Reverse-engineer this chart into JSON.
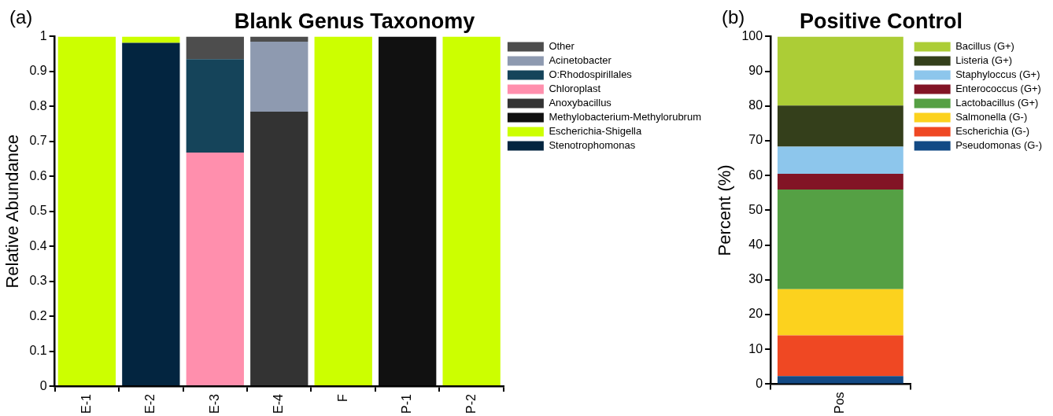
{
  "chart_data": [
    {
      "type": "bar",
      "title": "Blank Genus Taxonomy",
      "ylabel": "Relative Abundance",
      "annotations": [
        "(a)"
      ],
      "stacked": true,
      "grid": false,
      "legend": "top right",
      "categories": [
        "E-1",
        "E-2",
        "E-3",
        "E-4",
        "F",
        "P-1",
        "P-2"
      ],
      "ylim": [
        0,
        1
      ],
      "yticks": [
        0,
        0.1,
        0.2,
        0.3,
        0.4,
        0.5,
        0.6,
        0.7,
        0.8,
        0.9,
        1
      ],
      "series": [
        {
          "name": "Stenotrophomonas",
          "color": "#032540",
          "values": [
            0,
            0.982,
            0,
            0,
            0,
            0,
            0
          ]
        },
        {
          "name": "Escherichia-Shigella",
          "color": "#ccff00",
          "values": [
            1,
            0.018,
            0,
            0,
            1,
            0,
            1
          ]
        },
        {
          "name": "Methylobacterium-Methylorubrum",
          "color": "#111111",
          "values": [
            0,
            0,
            0,
            0,
            0,
            1,
            0
          ]
        },
        {
          "name": "Anoxybacillus",
          "color": "#333333",
          "values": [
            0,
            0,
            0,
            0.785,
            0,
            0,
            0
          ]
        },
        {
          "name": "Chloroplast",
          "color": "#ff8fad",
          "values": [
            0,
            0,
            0.668,
            0,
            0,
            0,
            0
          ]
        },
        {
          "name": "O:Rhodospirillales",
          "color": "#15445a",
          "values": [
            0,
            0,
            0.267,
            0,
            0,
            0,
            0
          ]
        },
        {
          "name": "Acinetobacter",
          "color": "#8e9ab0",
          "values": [
            0,
            0,
            0,
            0.2,
            0,
            0,
            0
          ]
        },
        {
          "name": "Other",
          "color": "#4d4d4d",
          "values": [
            0,
            0,
            0.065,
            0.015,
            0,
            0,
            0
          ]
        }
      ]
    },
    {
      "type": "bar",
      "title": "Positive Control",
      "ylabel": "Percent (%)",
      "annotations": [
        "(b)"
      ],
      "stacked": true,
      "grid": false,
      "legend": "top right",
      "categories": [
        "Pos"
      ],
      "ylim": [
        0,
        100
      ],
      "yticks": [
        0,
        10,
        20,
        30,
        40,
        50,
        60,
        70,
        80,
        90,
        100
      ],
      "series": [
        {
          "name": "Pseudomonas (G-)",
          "color": "#134a85",
          "values": [
            2.3
          ]
        },
        {
          "name": "Escherichia (G-)",
          "color": "#ef4823",
          "values": [
            11.7
          ]
        },
        {
          "name": "Salmonella (G-)",
          "color": "#fcd21e",
          "values": [
            13.3
          ]
        },
        {
          "name": "Lactobacillus (G+)",
          "color": "#55a044",
          "values": [
            28.7
          ]
        },
        {
          "name": "Enterococcus (G+)",
          "color": "#821425",
          "values": [
            4.5
          ]
        },
        {
          "name": "Staphyloccus (G+)",
          "color": "#8dc6ec",
          "values": [
            7.8
          ]
        },
        {
          "name": "Listeria (G+)",
          "color": "#343f1b",
          "values": [
            11.8
          ]
        },
        {
          "name": "Bacillus (G+)",
          "color": "#accd36",
          "values": [
            19.9
          ]
        }
      ]
    }
  ]
}
